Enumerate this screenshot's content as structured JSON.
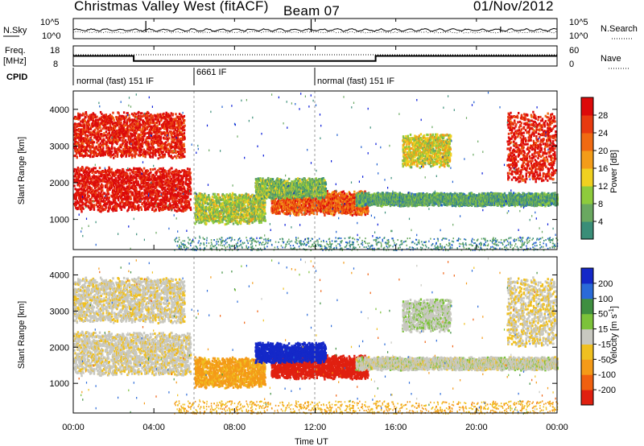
{
  "header": {
    "site": "Christmas Valley West (fitACF)",
    "beam": "Beam 07",
    "date": "01/Nov/2012"
  },
  "strip": {
    "nsky_label": "N.Sky",
    "nsearch_label": "N.Search",
    "noise_ticks": [
      "10^5",
      "10^0"
    ],
    "freq_label_1": "Freq.",
    "freq_label_2": "[MHz]",
    "freq_ticks": [
      "18",
      "8"
    ],
    "nave_label": "Nave",
    "nave_ticks": [
      "60",
      "0"
    ],
    "cpid_label": "CPID",
    "cpid_segments": [
      {
        "start_hour": 0,
        "end_hour": 6,
        "label": "normal (fast) 151 IF"
      },
      {
        "start_hour": 6,
        "end_hour": 12,
        "label": "6661 IF"
      },
      {
        "start_hour": 12,
        "end_hour": 24,
        "label": "normal (fast) 151 IF"
      }
    ]
  },
  "panels": {
    "power": {
      "ylabel": "Slant Range [km]",
      "cbar_label": "Power [dB]",
      "cbar_ticks": [
        "28",
        "24",
        "20",
        "16",
        "12",
        "8",
        "4"
      ]
    },
    "velocity": {
      "ylabel": "Slant Range [km]",
      "cbar_label": "Velocity [m s",
      "cbar_label_sup": "-1",
      "cbar_label_end": "]",
      "cbar_ticks": [
        "200",
        "100",
        "50",
        "15",
        "-15",
        "-50",
        "-100",
        "-200"
      ]
    }
  },
  "colors": {
    "power_scale": [
      "#0014d8",
      "#1e5fd0",
      "#3a8e78",
      "#6aa860",
      "#8ecb3c",
      "#f0d020",
      "#f39c19",
      "#f06a12",
      "#e83a10",
      "#dc0a0a"
    ],
    "velocity_scale": [
      "#1428c8",
      "#2a6ad8",
      "#3f8f40",
      "#7cc23a",
      "#c8c8c0",
      "#f0c020",
      "#f49a18",
      "#f06010",
      "#e02010"
    ],
    "ground_scatter": "#c8c8c0"
  },
  "chart_data": {
    "type": "heatmap",
    "title": "Christmas Valley West (fitACF)",
    "xlabel": "Time UT",
    "x_ticks": [
      "00:00",
      "04:00",
      "08:00",
      "12:00",
      "16:00",
      "20:00",
      "00:00"
    ],
    "xlim_hours": [
      0,
      24
    ],
    "y_ticks": [
      1000,
      2000,
      3000,
      4000
    ],
    "ylim_km": [
      180,
      4500
    ],
    "power_range_db": [
      0,
      30
    ],
    "velocity_range_ms": [
      -250,
      250
    ],
    "frequency_mhz_segments": [
      {
        "start_hour": 0,
        "end_hour": 3,
        "value": 13
      },
      {
        "start_hour": 3,
        "end_hour": 15,
        "value": 10.5
      },
      {
        "start_hour": 15,
        "end_hour": 24,
        "value": 13
      }
    ],
    "features": [
      {
        "name": "early band upper",
        "t0": 0.0,
        "t1": 5.5,
        "r0": 2750,
        "r1": 3900,
        "power_db": 28,
        "velocity": -5
      },
      {
        "name": "early band lower",
        "t0": 0.0,
        "t1": 5.8,
        "r0": 1300,
        "r1": 2400,
        "power_db": 29,
        "velocity": -5
      },
      {
        "name": "morning echo",
        "t0": 6.0,
        "t1": 9.5,
        "r0": 950,
        "r1": 1700,
        "power_db": 14,
        "velocity": -60
      },
      {
        "name": "main midday echo",
        "t0": 9.8,
        "t1": 14.6,
        "r0": 1200,
        "r1": 1750,
        "power_db": 24,
        "velocity": -200
      },
      {
        "name": "blue flow",
        "t0": 9.0,
        "t1": 12.5,
        "r0": 1650,
        "r1": 2100,
        "power_db": 12,
        "velocity": 200
      },
      {
        "name": "evening band",
        "t0": 14.0,
        "t1": 24.0,
        "r0": 1450,
        "r1": 1700,
        "power_db": 10,
        "velocity": 0
      },
      {
        "name": "afternoon patch",
        "t0": 16.3,
        "t1": 18.7,
        "r0": 2500,
        "r1": 3300,
        "power_db": 16,
        "velocity": 5
      },
      {
        "name": "late arc",
        "t0": 21.5,
        "t1": 23.9,
        "r0": 2100,
        "r1": 3900,
        "power_db": 28,
        "velocity": -10
      }
    ]
  }
}
